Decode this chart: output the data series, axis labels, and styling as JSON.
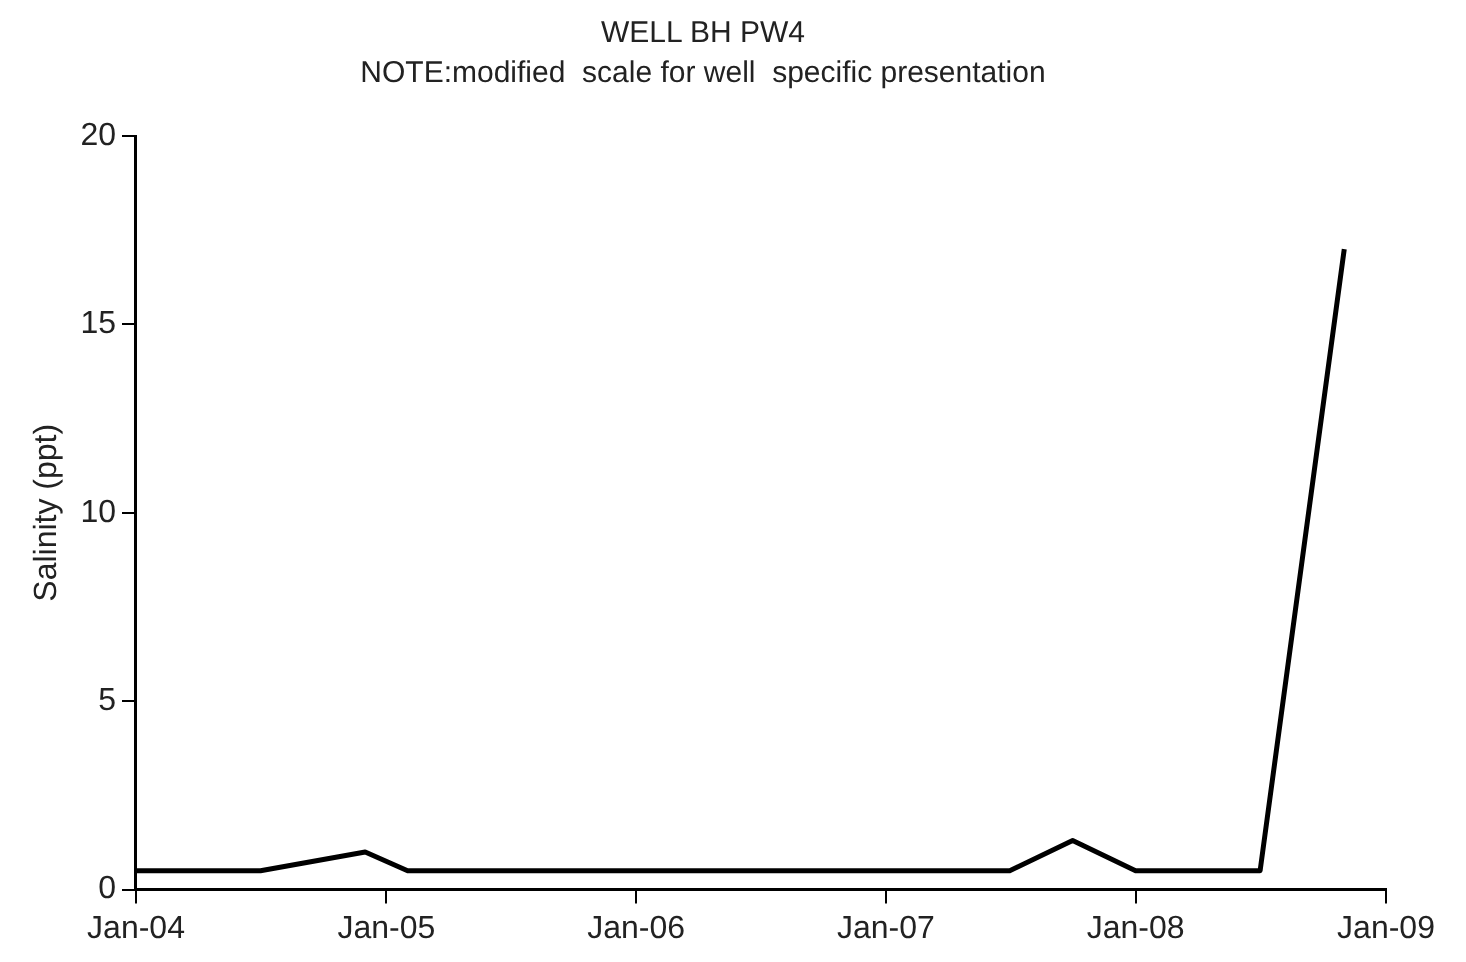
{
  "chart_data": {
    "type": "line",
    "title": "WELL BH PW4",
    "subtitle": "NOTE:modified  scale for well  specific presentation",
    "ylabel": "Salinity (ppt)",
    "x": [
      "2004-01",
      "2004-07",
      "2004-12",
      "2005-02",
      "2007-07",
      "2007-10",
      "2008-01",
      "2008-07",
      "2008-11"
    ],
    "values": [
      0.5,
      0.5,
      1.0,
      0.5,
      0.5,
      1.3,
      0.5,
      0.5,
      17
    ],
    "color": "#000000",
    "xlim": [
      "2004-01",
      "2009-01"
    ],
    "xticks": [
      {
        "value": "2004-01",
        "label": "Jan-04"
      },
      {
        "value": "2005-01",
        "label": "Jan-05"
      },
      {
        "value": "2006-01",
        "label": "Jan-06"
      },
      {
        "value": "2007-01",
        "label": "Jan-07"
      },
      {
        "value": "2008-01",
        "label": "Jan-08"
      },
      {
        "value": "2009-01",
        "label": "Jan-09"
      }
    ],
    "ylim": [
      0,
      20
    ],
    "yticks": [
      0,
      5,
      10,
      15,
      20
    ],
    "grid": false
  }
}
